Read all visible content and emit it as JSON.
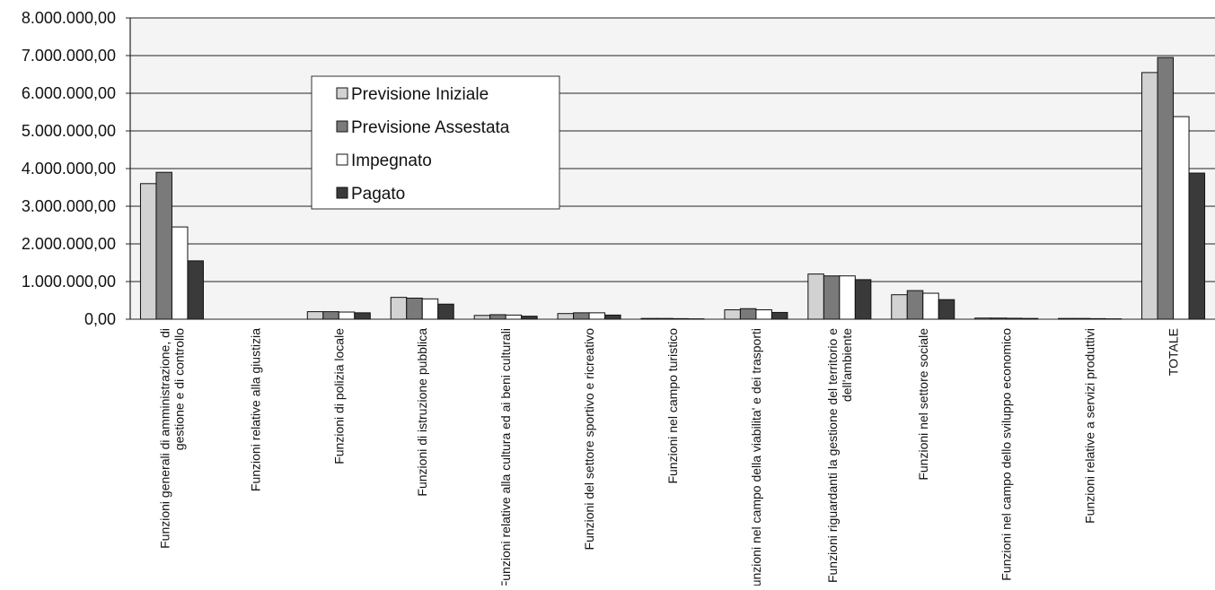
{
  "chart_data": {
    "type": "bar",
    "title": "",
    "xlabel": "",
    "ylabel": "",
    "ylim": [
      0,
      8000000
    ],
    "yticks": [
      "0,00",
      "1.000.000,00",
      "2.000.000,00",
      "3.000.000,00",
      "4.000.000,00",
      "5.000.000,00",
      "6.000.000,00",
      "7.000.000,00",
      "8.000.000,00"
    ],
    "grid": true,
    "legend_position": "top-center",
    "categories": [
      [
        "Funzioni generali di amministrazione, di",
        "gestione e di controllo"
      ],
      [
        "Funzioni relative alla giustizia"
      ],
      [
        "Funzioni di polizia locale"
      ],
      [
        "Funzioni di istruzione pubblica"
      ],
      [
        "Funzioni relative alla cultura ed ai beni culturali"
      ],
      [
        "Funzioni del settore sportivo e ricreativo"
      ],
      [
        "Funzioni nel campo turistico"
      ],
      [
        "Funzioni nel campo della viabilita' e dei trasporti"
      ],
      [
        "Funzioni riguardanti la gestione del territorio e",
        "dell'ambiente"
      ],
      [
        "Funzioni nel settore sociale"
      ],
      [
        "Funzioni nel campo dello sviluppo economico"
      ],
      [
        "Funzioni relative a servizi produttivi"
      ],
      [
        "TOTALE"
      ]
    ],
    "series": [
      {
        "name": "Previsione Iniziale",
        "color": "#d2d2d2",
        "values": [
          3600000,
          0,
          200000,
          580000,
          100000,
          150000,
          20000,
          250000,
          1200000,
          650000,
          30000,
          20000,
          6550000
        ]
      },
      {
        "name": "Previsione Assestata",
        "color": "#7a7a7a",
        "values": [
          3900000,
          0,
          200000,
          560000,
          120000,
          170000,
          20000,
          280000,
          1150000,
          760000,
          30000,
          20000,
          6950000
        ]
      },
      {
        "name": "Impegnato",
        "color": "#ffffff",
        "values": [
          2450000,
          0,
          190000,
          540000,
          110000,
          170000,
          15000,
          250000,
          1150000,
          690000,
          25000,
          15000,
          5380000
        ]
      },
      {
        "name": "Pagato",
        "color": "#3a3a3a",
        "values": [
          1550000,
          0,
          170000,
          400000,
          80000,
          110000,
          10000,
          180000,
          1050000,
          520000,
          20000,
          10000,
          3880000
        ]
      }
    ]
  }
}
